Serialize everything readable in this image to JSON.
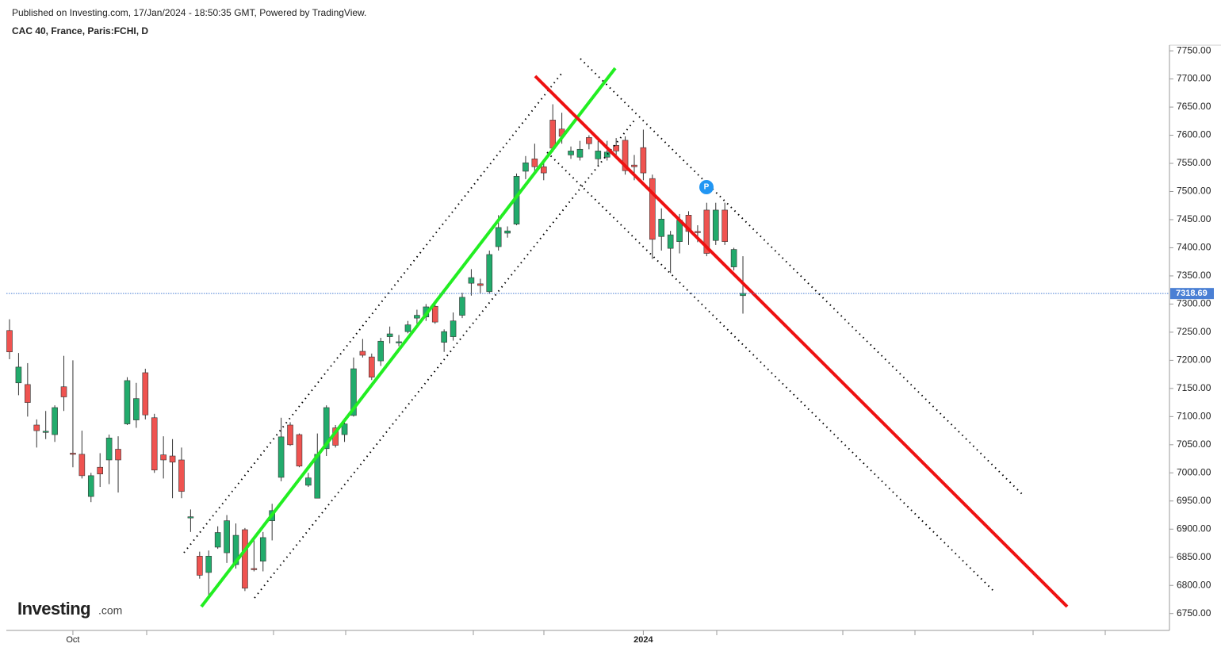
{
  "chart_data": {
    "type": "candlestick",
    "published": "Published on Investing.com, 17/Jan/2024 - 18:50:35 GMT, Powered by TradingView.",
    "title": "CAC 40, France, Paris:FCHI, D",
    "logo": {
      "brand": "Investing",
      "suffix": ".com"
    },
    "annotation": "P",
    "up_color": "#22ab6c",
    "down_color": "#ef5350",
    "last_price": 7318.69,
    "last_price_color": "#4a7fd4",
    "ylim": [
      6720,
      7760
    ],
    "yticks": [
      {
        "value": 6750,
        "label": "6750.00"
      },
      {
        "value": 6800,
        "label": "6800.00"
      },
      {
        "value": 6850,
        "label": "6850.00"
      },
      {
        "value": 6900,
        "label": "6900.00"
      },
      {
        "value": 6950,
        "label": "6950.00"
      },
      {
        "value": 7000,
        "label": "7000.00"
      },
      {
        "value": 7050,
        "label": "7050.00"
      },
      {
        "value": 7100,
        "label": "7100.00"
      },
      {
        "value": 7150,
        "label": "7150.00"
      },
      {
        "value": 7200,
        "label": "7200.00"
      },
      {
        "value": 7250,
        "label": "7250.00"
      },
      {
        "value": 7300,
        "label": "7300.00"
      },
      {
        "value": 7350,
        "label": "7350.00"
      },
      {
        "value": 7400,
        "label": "7400.00"
      },
      {
        "value": 7450,
        "label": "7450.00"
      },
      {
        "value": 7500,
        "label": "7500.00"
      },
      {
        "value": 7550,
        "label": "7550.00"
      },
      {
        "value": 7600,
        "label": "7600.00"
      },
      {
        "value": 7650,
        "label": "7650.00"
      },
      {
        "value": 7700,
        "label": "7700.00"
      },
      {
        "value": 7750,
        "label": "7750.00"
      }
    ],
    "categories": [
      null,
      null,
      null,
      null,
      null,
      null,
      null,
      "Oct",
      null,
      null,
      null,
      null,
      null,
      null,
      null,
      null,
      null,
      null,
      null,
      null,
      null,
      null,
      null,
      null,
      null,
      null,
      null,
      null,
      null,
      null,
      null,
      null,
      null,
      null,
      null,
      null,
      null,
      null,
      null,
      null,
      null,
      null,
      null,
      null,
      null,
      null,
      null,
      null,
      null,
      null,
      null,
      null,
      null,
      null,
      null,
      null,
      null,
      null,
      null,
      null,
      null,
      null,
      null,
      null,
      null,
      null,
      null,
      null,
      null,
      null,
      "2024",
      null,
      null,
      null,
      null,
      null,
      null,
      null,
      null,
      null,
      null,
      null
    ],
    "open": [
      7253,
      7160,
      7157,
      7085,
      7072,
      7068,
      7153,
      7035,
      7033,
      6958,
      7010,
      7023,
      7042,
      7087,
      7094,
      7178,
      7098,
      7032,
      7030,
      7023,
      6922,
      6852,
      6823,
      6868,
      6858,
      6837,
      6899,
      6830,
      6843,
      6915,
      6992,
      7085,
      7068,
      6978,
      6955,
      7043,
      7080,
      7068,
      7102,
      7216,
      7206,
      7199,
      7242,
      7232,
      7251,
      7275,
      7277,
      7296,
      7232,
      7242,
      7280,
      7337,
      7336,
      7322,
      7402,
      7426,
      7442,
      7536,
      7558,
      7544,
      7627,
      7611,
      7565,
      7561,
      7596,
      7558,
      7561,
      7582,
      7591,
      7547,
      7578,
      7523,
      7420,
      7399,
      7411,
      7458,
      7429,
      7467,
      7413,
      7467,
      7366,
      7315
    ],
    "high": [
      7273,
      7213,
      7195,
      7095,
      7110,
      7120,
      7208,
      7200,
      7075,
      7000,
      7035,
      7068,
      7065,
      7170,
      7160,
      7185,
      7105,
      7065,
      7060,
      7045,
      6935,
      6860,
      6862,
      6905,
      6925,
      6910,
      6902,
      6880,
      6895,
      6945,
      7098,
      7090,
      7070,
      7000,
      7070,
      7120,
      7085,
      7092,
      7205,
      7238,
      7212,
      7240,
      7260,
      7245,
      7270,
      7290,
      7300,
      7305,
      7255,
      7285,
      7320,
      7362,
      7345,
      7395,
      7458,
      7438,
      7532,
      7563,
      7585,
      7555,
      7655,
      7640,
      7580,
      7590,
      7600,
      7590,
      7590,
      7595,
      7598,
      7565,
      7610,
      7530,
      7470,
      7430,
      7460,
      7465,
      7440,
      7480,
      7480,
      7480,
      7400,
      7385
    ],
    "low": [
      7202,
      7138,
      7100,
      7045,
      7060,
      7055,
      7110,
      7010,
      6990,
      6948,
      6975,
      6980,
      6965,
      7085,
      7080,
      7095,
      7000,
      6990,
      6955,
      6955,
      6895,
      6812,
      6780,
      6865,
      6840,
      6830,
      6790,
      6825,
      6825,
      6880,
      6985,
      7048,
      7010,
      6975,
      6955,
      7030,
      7045,
      7055,
      7100,
      7205,
      7165,
      7190,
      7230,
      7225,
      7248,
      7265,
      7270,
      7265,
      7215,
      7235,
      7275,
      7315,
      7318,
      7318,
      7395,
      7418,
      7440,
      7522,
      7535,
      7520,
      7570,
      7585,
      7558,
      7555,
      7575,
      7545,
      7555,
      7565,
      7530,
      7520,
      7520,
      7380,
      7395,
      7355,
      7390,
      7405,
      7410,
      7385,
      7405,
      7405,
      7360,
      7283
    ],
    "close": [
      7215,
      7188,
      7125,
      7075,
      7074,
      7116,
      7135,
      7033,
      6995,
      6995,
      6998,
      7062,
      7023,
      7164,
      7132,
      7103,
      7005,
      7023,
      7019,
      6967,
      6922,
      6818,
      6852,
      6894,
      6915,
      6889,
      6795,
      6829,
      6885,
      6933,
      7064,
      7050,
      7012,
      6991,
      7033,
      7116,
      7049,
      7087,
      7185,
      7209,
      7170,
      7234,
      7247,
      7233,
      7263,
      7280,
      7295,
      7268,
      7251,
      7270,
      7312,
      7347,
      7333,
      7388,
      7436,
      7430,
      7527,
      7551,
      7544,
      7533,
      7577,
      7598,
      7572,
      7575,
      7585,
      7572,
      7570,
      7572,
      7537,
      7544,
      7533,
      7415,
      7451,
      7423,
      7449,
      7429,
      7427,
      7390,
      7467,
      7411,
      7397,
      7319
    ]
  }
}
